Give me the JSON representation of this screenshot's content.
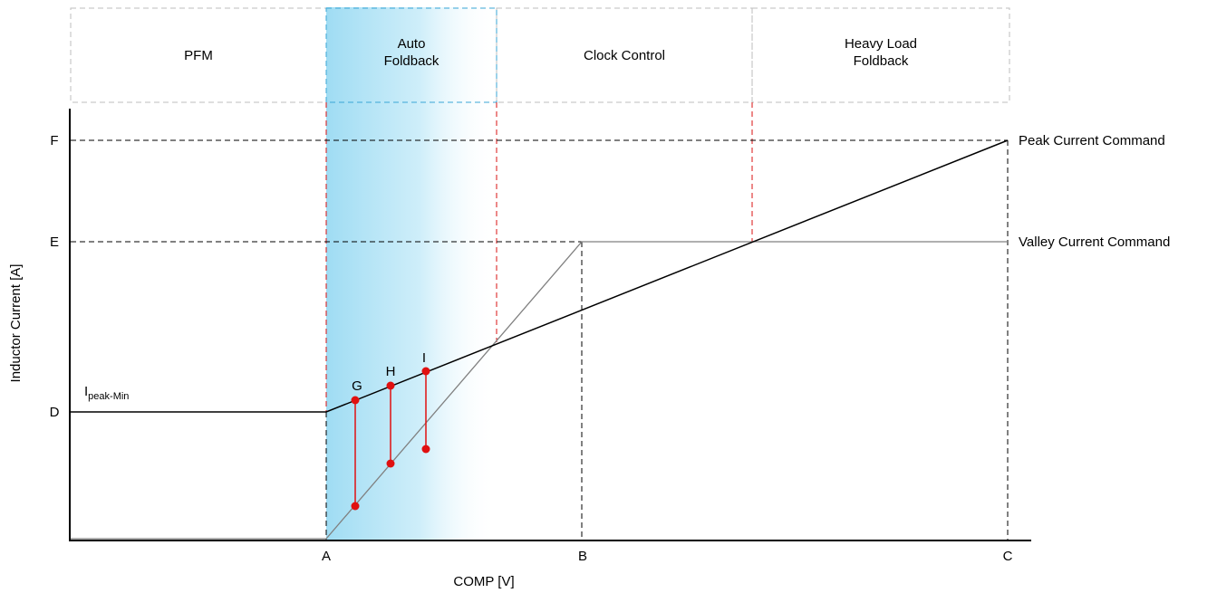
{
  "regions": [
    {
      "label_lines": [
        "PFM"
      ]
    },
    {
      "label_lines": [
        "Auto",
        "Foldback"
      ]
    },
    {
      "label_lines": [
        "Clock Control"
      ]
    },
    {
      "label_lines": [
        "Heavy Load",
        "Foldback"
      ]
    }
  ],
  "axes": {
    "x_label": "COMP [V]",
    "y_label": "Inductor Current [A]",
    "x_ticks": [
      "A",
      "B",
      "C"
    ],
    "y_ticks": [
      "D",
      "E",
      "F"
    ]
  },
  "annotations": {
    "ipeak_main": "I",
    "ipeak_sub": "peak-Min",
    "points": [
      "G",
      "H",
      "I"
    ]
  },
  "curves": {
    "peak": "Peak Current Command",
    "valley": "Valley Current Command"
  },
  "colors": {
    "highlight_blue": "#9fdcf3",
    "marker_red": "#e01010",
    "divider_red": "#d81010",
    "box_gray": "#bdbdbd",
    "valley_gray": "#808080"
  }
}
